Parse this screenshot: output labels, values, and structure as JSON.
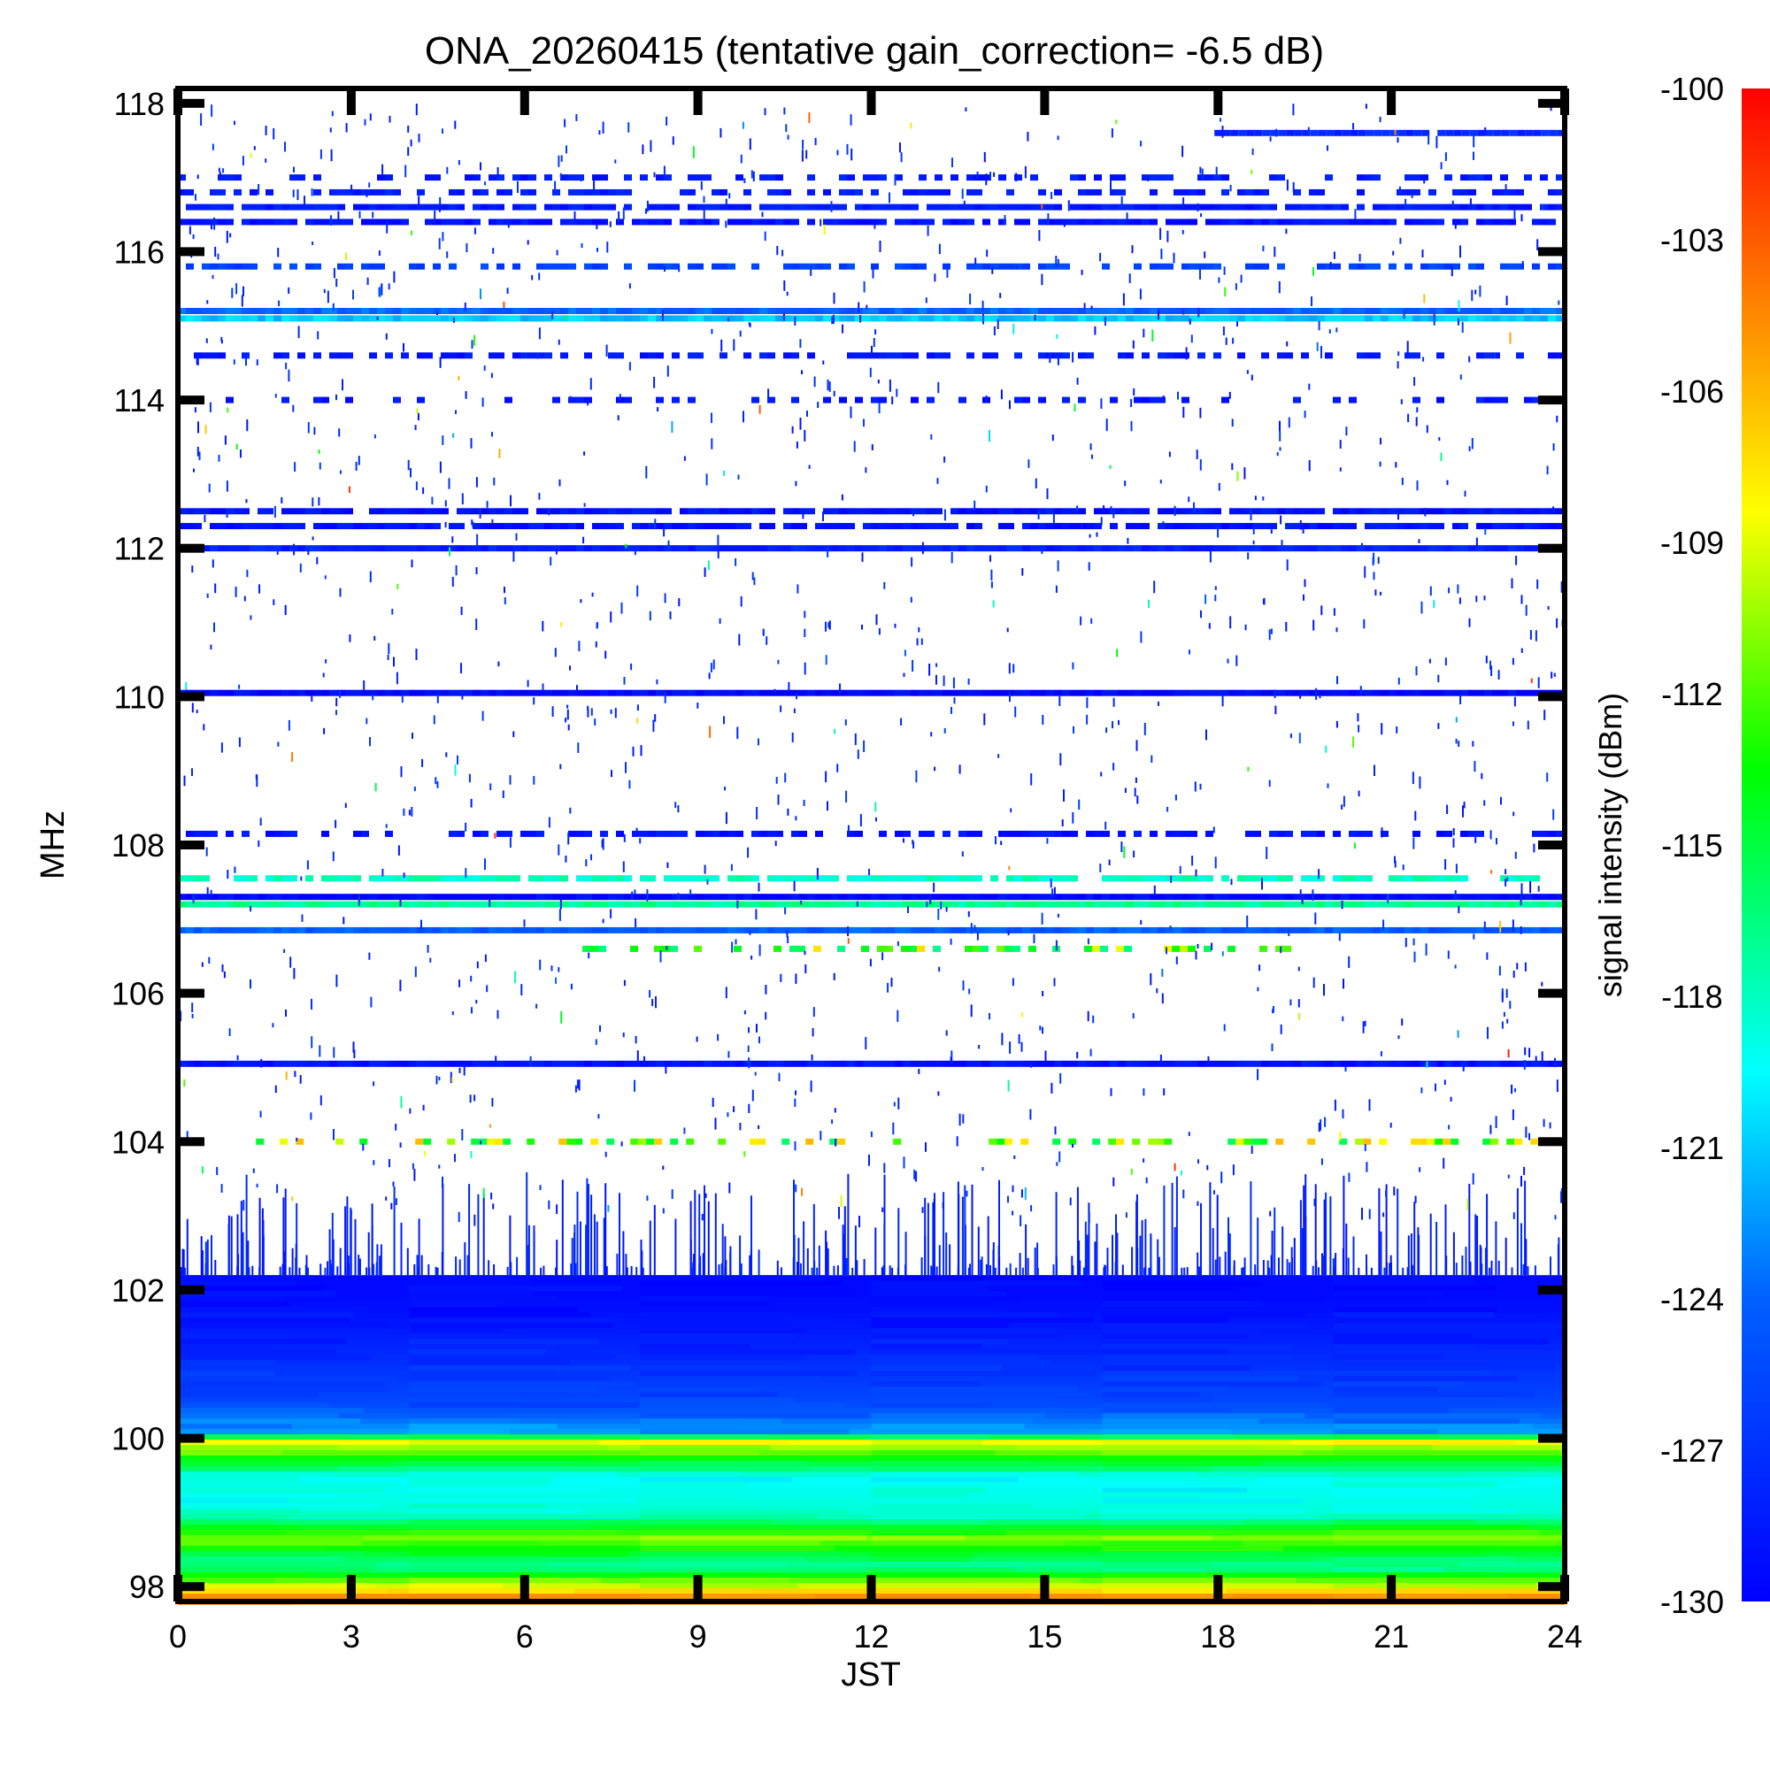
{
  "chart_data": {
    "type": "heatmap",
    "title": "ONA_20260415 (tentative gain_correction= -6.5 dB)",
    "xlabel": "JST",
    "ylabel": "MHz",
    "xlim": [
      0,
      24
    ],
    "ylim": [
      97.8,
      118.2
    ],
    "x_ticks": [
      "0",
      "3",
      "6",
      "9",
      "12",
      "15",
      "18",
      "21",
      "24"
    ],
    "y_ticks": [
      "98",
      "100",
      "102",
      "104",
      "106",
      "108",
      "110",
      "112",
      "114",
      "116",
      "118"
    ],
    "colorbar": {
      "label": "signal intensity (dBm)",
      "range": [
        -130,
        -100
      ],
      "ticks": [
        "-100",
        "-103",
        "-106",
        "-109",
        "-112",
        "-115",
        "-118",
        "-121",
        "-124",
        "-127",
        "-130"
      ]
    },
    "persistent_bands": [
      {
        "mhz": 117.6,
        "dbm": -127.5,
        "start": 17.8,
        "end": 24,
        "density": 0.9
      },
      {
        "mhz": 117.0,
        "dbm": -128.5,
        "start": 0,
        "end": 24,
        "density": 0.5
      },
      {
        "mhz": 116.8,
        "dbm": -128.5,
        "start": 0,
        "end": 24,
        "density": 0.55
      },
      {
        "mhz": 116.6,
        "dbm": -128.5,
        "start": 0,
        "end": 24,
        "density": 0.9
      },
      {
        "mhz": 116.4,
        "dbm": -129,
        "start": 0,
        "end": 24,
        "density": 0.85
      },
      {
        "mhz": 115.8,
        "dbm": -126,
        "start": 0,
        "end": 24,
        "density": 0.6
      },
      {
        "mhz": 115.2,
        "dbm": -124,
        "start": 0,
        "end": 24,
        "density": 1.0
      },
      {
        "mhz": 115.1,
        "dbm": -121,
        "start": 0,
        "end": 24,
        "density": 1.0
      },
      {
        "mhz": 114.6,
        "dbm": -128.5,
        "start": 0,
        "end": 24,
        "density": 0.5
      },
      {
        "mhz": 114.0,
        "dbm": -128.8,
        "start": 0,
        "end": 24,
        "density": 0.35
      },
      {
        "mhz": 112.5,
        "dbm": -129,
        "start": 0,
        "end": 24,
        "density": 0.95
      },
      {
        "mhz": 112.3,
        "dbm": -129,
        "start": 0,
        "end": 24,
        "density": 0.9
      },
      {
        "mhz": 112.0,
        "dbm": -128,
        "start": 0,
        "end": 24,
        "density": 1.0
      },
      {
        "mhz": 110.05,
        "dbm": -129.5,
        "start": 0,
        "end": 24,
        "density": 1.0
      },
      {
        "mhz": 108.15,
        "dbm": -129,
        "start": 0,
        "end": 24,
        "density": 0.6
      },
      {
        "mhz": 107.55,
        "dbm": -118,
        "start": 0,
        "end": 24,
        "density": 0.8
      },
      {
        "mhz": 107.3,
        "dbm": -129.5,
        "start": 0,
        "end": 24,
        "density": 1.0
      },
      {
        "mhz": 107.2,
        "dbm": -117,
        "start": 0,
        "end": 24,
        "density": 1.0
      },
      {
        "mhz": 106.85,
        "dbm": -124.5,
        "start": 0,
        "end": 24,
        "density": 1.0
      },
      {
        "mhz": 106.6,
        "dbm": -112,
        "start": 7,
        "end": 19.5,
        "density": 0.5
      },
      {
        "mhz": 105.05,
        "dbm": -129,
        "start": 0,
        "end": 24,
        "density": 1.0
      },
      {
        "mhz": 104.0,
        "dbm": -111,
        "start": 0.8,
        "end": 24,
        "density": 0.35
      }
    ],
    "low_band_gradient": [
      {
        "mhz": 102.0,
        "dbm": -129.5
      },
      {
        "mhz": 101.5,
        "dbm": -128.5
      },
      {
        "mhz": 101.0,
        "dbm": -127
      },
      {
        "mhz": 100.5,
        "dbm": -125.5
      },
      {
        "mhz": 100.1,
        "dbm": -122
      },
      {
        "mhz": 100.0,
        "dbm": -108
      },
      {
        "mhz": 99.5,
        "dbm": -119.5
      },
      {
        "mhz": 99.0,
        "dbm": -118.5
      },
      {
        "mhz": 98.7,
        "dbm": -111
      },
      {
        "mhz": 98.3,
        "dbm": -117.5
      },
      {
        "mhz": 97.9,
        "dbm": -104.5
      }
    ]
  }
}
